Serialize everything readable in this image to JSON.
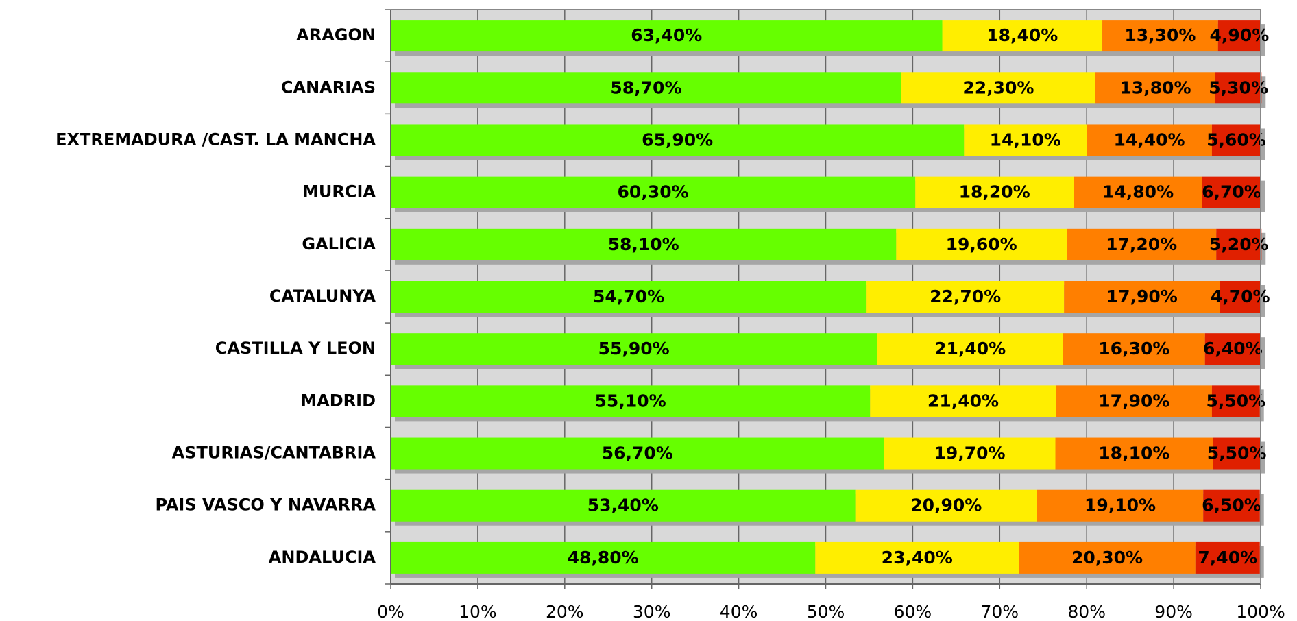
{
  "chart_data": {
    "type": "stacked-barh",
    "categories": [
      "ARAGON",
      "CANARIAS",
      "EXTREMADURA /CAST. LA MANCHA",
      "MURCIA",
      "GALICIA",
      "CATALUNYA",
      "CASTILLA Y LEON",
      "MADRID",
      "ASTURIAS/CANTABRIA",
      "PAIS VASCO Y NAVARRA",
      "ANDALUCIA"
    ],
    "series": [
      {
        "color": "#66ff00",
        "values": [
          63.4,
          58.7,
          65.9,
          60.3,
          58.1,
          54.7,
          55.9,
          55.1,
          56.7,
          53.4,
          48.8
        ],
        "value_labels": [
          "63,40%",
          "58,70%",
          "65,90%",
          "60,30%",
          "58,10%",
          "54,70%",
          "55,90%",
          "55,10%",
          "56,70%",
          "53,40%",
          "48,80%"
        ]
      },
      {
        "color": "#ffee00",
        "values": [
          18.4,
          22.3,
          14.1,
          18.2,
          19.6,
          22.7,
          21.4,
          21.4,
          19.7,
          20.9,
          23.4
        ],
        "value_labels": [
          "18,40%",
          "22,30%",
          "14,10%",
          "18,20%",
          "19,60%",
          "22,70%",
          "21,40%",
          "21,40%",
          "19,70%",
          "20,90%",
          "23,40%"
        ]
      },
      {
        "color": "#ff7f00",
        "values": [
          13.3,
          13.8,
          14.4,
          14.8,
          17.2,
          17.9,
          16.3,
          17.9,
          18.1,
          19.1,
          20.3
        ],
        "value_labels": [
          "13,30%",
          "13,80%",
          "14,40%",
          "14,80%",
          "17,20%",
          "17,90%",
          "16,30%",
          "17,90%",
          "18,10%",
          "19,10%",
          "20,30%"
        ]
      },
      {
        "color": "#e02000",
        "values": [
          4.9,
          5.3,
          5.6,
          6.7,
          5.2,
          4.7,
          6.4,
          5.5,
          5.5,
          6.5,
          7.4
        ],
        "value_labels": [
          "4,90%",
          "5,30%",
          "5,60%",
          "6,70%",
          "5,20%",
          "4,70%",
          "6,40%",
          "5,50%",
          "5,50%",
          "6,50%",
          "7,40%"
        ]
      }
    ],
    "xlim": [
      0,
      100
    ],
    "xticks": [
      {
        "value": 0,
        "label": "0%"
      },
      {
        "value": 10,
        "label": "10%"
      },
      {
        "value": 20,
        "label": "20%"
      },
      {
        "value": 30,
        "label": "30%"
      },
      {
        "value": 40,
        "label": "40%"
      },
      {
        "value": 50,
        "label": "50%"
      },
      {
        "value": 60,
        "label": "60%"
      },
      {
        "value": 70,
        "label": "70%"
      },
      {
        "value": 80,
        "label": "80%"
      },
      {
        "value": 90,
        "label": "90%"
      },
      {
        "value": 100,
        "label": "100%"
      }
    ],
    "grid": true
  }
}
